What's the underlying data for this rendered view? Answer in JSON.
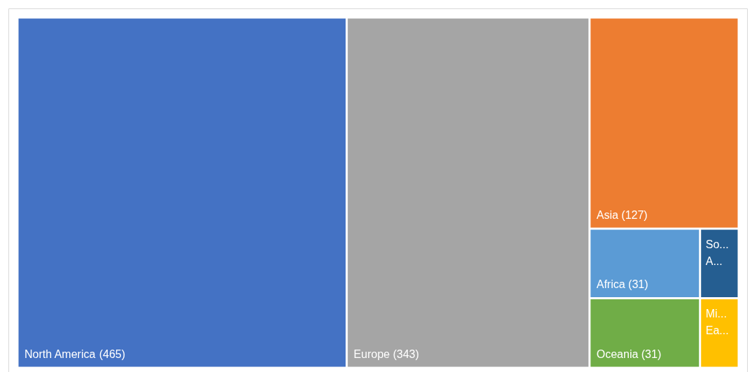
{
  "chart_data": {
    "type": "other",
    "categories": [
      "North America",
      "Europe",
      "Asia",
      "Africa",
      "Oceania",
      "So... A...",
      "Mi... Ea..."
    ],
    "values": [
      465,
      343,
      127,
      31,
      31,
      null,
      null
    ],
    "data_labels": true,
    "value_labels": [
      "(465)",
      "(343)",
      "(127)",
      "(31)",
      "(31)",
      null,
      null
    ],
    "colors": [
      "#4472c4",
      "#a5a5a5",
      "#ed7d31",
      "#5b9bd5",
      "#70ad47",
      "#255e91",
      "#ffc000"
    ]
  }
}
